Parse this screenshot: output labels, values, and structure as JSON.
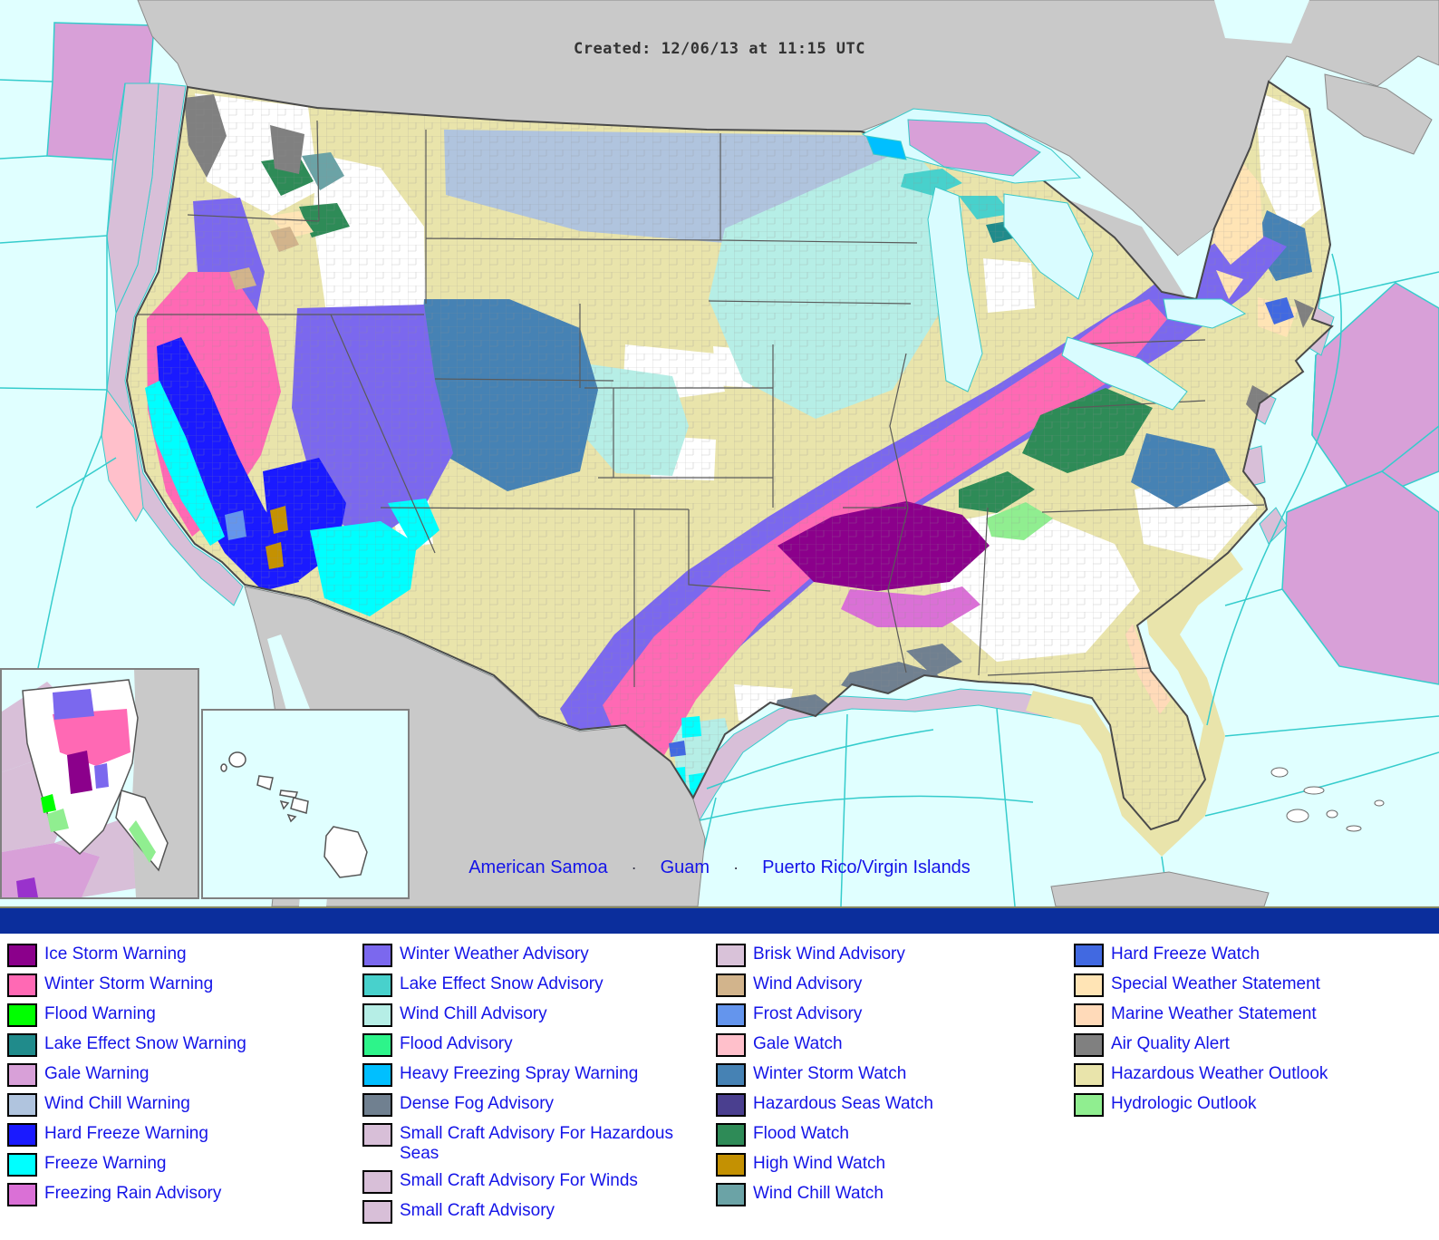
{
  "title": {
    "created": "Created: 12/06/13 at 11:15 UTC"
  },
  "territory_links": {
    "items": [
      "American Samoa",
      "Guam",
      "Puerto Rico/Virgin Islands"
    ],
    "separator": "·"
  },
  "map_colors": {
    "ocean": "#e0ffff",
    "land": "#c9c9c9",
    "us_outline": "#4a4a4a",
    "state_line": "#5a5a5a",
    "marine_line": "#35cccc",
    "white_area": "#ffffff",
    "lake_fill": "#d9fcff",
    "inset_border": "#808080",
    "navy_bar": "#0b2e9c",
    "link_text": "#1414e8",
    "created_text": "#333333"
  },
  "legend": {
    "columns": [
      [
        {
          "key": "ice_storm_warning",
          "label": "Ice Storm Warning",
          "color": "#8b008b"
        },
        {
          "key": "winter_storm_warning",
          "label": "Winter Storm Warning",
          "color": "#ff69b4"
        },
        {
          "key": "flood_warning",
          "label": "Flood Warning",
          "color": "#00ff00"
        },
        {
          "key": "lake_effect_snow_warning",
          "label": "Lake Effect Snow Warning",
          "color": "#208b8b"
        },
        {
          "key": "gale_warning",
          "label": "Gale Warning",
          "color": "#d8a0d8"
        },
        {
          "key": "wind_chill_warning",
          "label": "Wind Chill Warning",
          "color": "#b0c4de"
        },
        {
          "key": "hard_freeze_warning",
          "label": "Hard Freeze Warning",
          "color": "#1a1aff"
        },
        {
          "key": "freeze_warning",
          "label": "Freeze Warning",
          "color": "#00ffff"
        },
        {
          "key": "freezing_rain_advisory",
          "label": "Freezing Rain Advisory",
          "color": "#da70d6"
        }
      ],
      [
        {
          "key": "winter_weather_advisory",
          "label": "Winter Weather Advisory",
          "color": "#7b68ee"
        },
        {
          "key": "lake_effect_snow_advisory",
          "label": "Lake Effect Snow Advisory",
          "color": "#48d1cc"
        },
        {
          "key": "wind_chill_advisory",
          "label": "Wind Chill Advisory",
          "color": "#b6eee6"
        },
        {
          "key": "flood_advisory",
          "label": "Flood Advisory",
          "color": "#2df48a"
        },
        {
          "key": "heavy_freezing_spray_warning",
          "label": "Heavy Freezing Spray Warning",
          "color": "#00bfff"
        },
        {
          "key": "dense_fog_advisory",
          "label": "Dense Fog Advisory",
          "color": "#708090"
        },
        {
          "key": "small_craft_advisory_hazardous_seas",
          "label": "Small Craft Advisory For Hazardous Seas",
          "color": "#d8bfd8"
        },
        {
          "key": "small_craft_advisory_winds",
          "label": "Small Craft Advisory For Winds",
          "color": "#d8bfd8"
        },
        {
          "key": "small_craft_advisory",
          "label": "Small Craft Advisory",
          "color": "#d8bfd8"
        }
      ],
      [
        {
          "key": "brisk_wind_advisory",
          "label": "Brisk Wind Advisory",
          "color": "#d9c2d9"
        },
        {
          "key": "wind_advisory",
          "label": "Wind Advisory",
          "color": "#d2b48c"
        },
        {
          "key": "frost_advisory",
          "label": "Frost Advisory",
          "color": "#6495ed"
        },
        {
          "key": "gale_watch",
          "label": "Gale Watch",
          "color": "#ffc0cb"
        },
        {
          "key": "winter_storm_watch",
          "label": "Winter Storm Watch",
          "color": "#4682b4"
        },
        {
          "key": "hazardous_seas_watch",
          "label": "Hazardous Seas Watch",
          "color": "#4a3f8f"
        },
        {
          "key": "flood_watch",
          "label": "Flood Watch",
          "color": "#2e8b57"
        },
        {
          "key": "high_wind_watch",
          "label": "High Wind Watch",
          "color": "#c49102"
        },
        {
          "key": "wind_chill_watch",
          "label": "Wind Chill Watch",
          "color": "#6ba3a6"
        }
      ],
      [
        {
          "key": "hard_freeze_watch",
          "label": "Hard Freeze Watch",
          "color": "#4169e1"
        },
        {
          "key": "special_weather_statement",
          "label": "Special Weather Statement",
          "color": "#ffe4b5"
        },
        {
          "key": "marine_weather_statement",
          "label": "Marine Weather Statement",
          "color": "#ffdab9"
        },
        {
          "key": "air_quality_alert",
          "label": "Air Quality Alert",
          "color": "#808080"
        },
        {
          "key": "hazardous_weather_outlook",
          "label": "Hazardous Weather Outlook",
          "color": "#e9e4ab"
        },
        {
          "key": "hydrologic_outlook",
          "label": "Hydrologic Outlook",
          "color": "#90ee90"
        }
      ]
    ]
  }
}
